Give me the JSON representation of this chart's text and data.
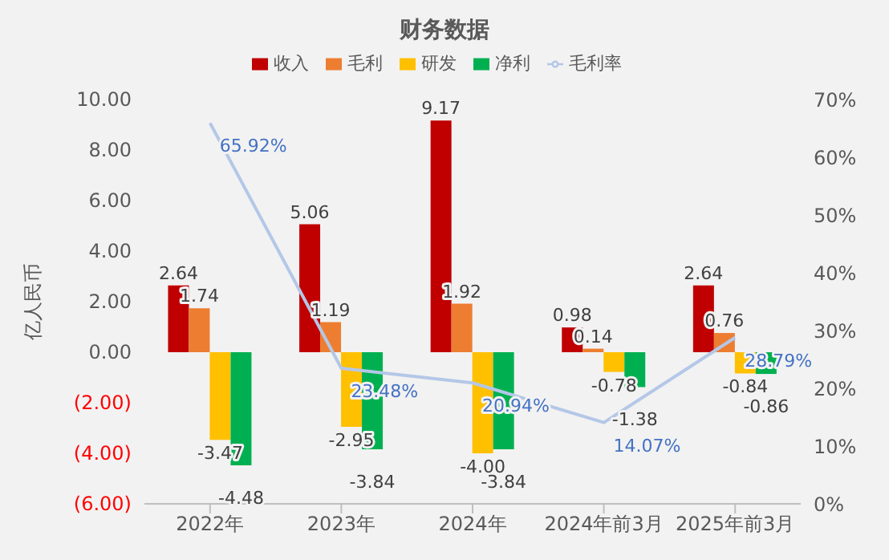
{
  "chart_data": {
    "type": "bar",
    "title": "财务数据",
    "ylabel": "亿人民币",
    "categories": [
      "2022年",
      "2023年",
      "2024年",
      "2024年前3月",
      "2025年前3月"
    ],
    "series": [
      {
        "name": "收入",
        "color": "#c00000",
        "values": [
          2.64,
          5.06,
          9.17,
          0.98,
          2.64
        ],
        "value_labels": [
          "2.64",
          "5.06",
          "9.17",
          "0.98",
          "2.64"
        ]
      },
      {
        "name": "毛利",
        "color": "#ed7d31",
        "values": [
          1.74,
          1.19,
          1.92,
          0.14,
          0.76
        ],
        "value_labels": [
          "1.74",
          "1.19",
          "1.92",
          "0.14",
          "0.76"
        ]
      },
      {
        "name": "研发",
        "color": "#ffc000",
        "values": [
          -3.47,
          -2.95,
          -4.0,
          -0.78,
          -0.84
        ],
        "value_labels": [
          "-3.47",
          "-2.95",
          "-4.00",
          "-0.78",
          "-0.84"
        ]
      },
      {
        "name": "净利",
        "color": "#00b050",
        "values": [
          -4.48,
          -3.84,
          -3.84,
          -1.38,
          -0.86
        ],
        "value_labels": [
          "-4.48",
          "-3.84",
          "-3.84",
          "-1.38",
          "-0.86"
        ]
      },
      {
        "name": "毛利率",
        "type": "line",
        "axis": "y2",
        "color": "#b4c7e7",
        "values": [
          65.92,
          23.48,
          20.94,
          14.07,
          28.79
        ],
        "value_labels": [
          "65.92%",
          "23.48%",
          "20.94%",
          "14.07%",
          "28.79%"
        ]
      }
    ],
    "ylim": [
      -6,
      10
    ],
    "yticks": [
      {
        "value": -6,
        "label": "(6.00)"
      },
      {
        "value": -4,
        "label": "(4.00)"
      },
      {
        "value": -2,
        "label": "(2.00)"
      },
      {
        "value": 0,
        "label": "0.00"
      },
      {
        "value": 2,
        "label": "2.00"
      },
      {
        "value": 4,
        "label": "4.00"
      },
      {
        "value": 6,
        "label": "6.00"
      },
      {
        "value": 8,
        "label": "8.00"
      },
      {
        "value": 10,
        "label": "10.00"
      }
    ],
    "y2lim": [
      0,
      70
    ],
    "y2ticks": [
      {
        "value": 0,
        "label": "0%"
      },
      {
        "value": 10,
        "label": "10%"
      },
      {
        "value": 20,
        "label": "20%"
      },
      {
        "value": 30,
        "label": "30%"
      },
      {
        "value": 40,
        "label": "40%"
      },
      {
        "value": 50,
        "label": "50%"
      },
      {
        "value": 60,
        "label": "60%"
      },
      {
        "value": 70,
        "label": "70%"
      }
    ],
    "legend": "top",
    "grid": false,
    "marker": "none",
    "line_style": "solid"
  }
}
